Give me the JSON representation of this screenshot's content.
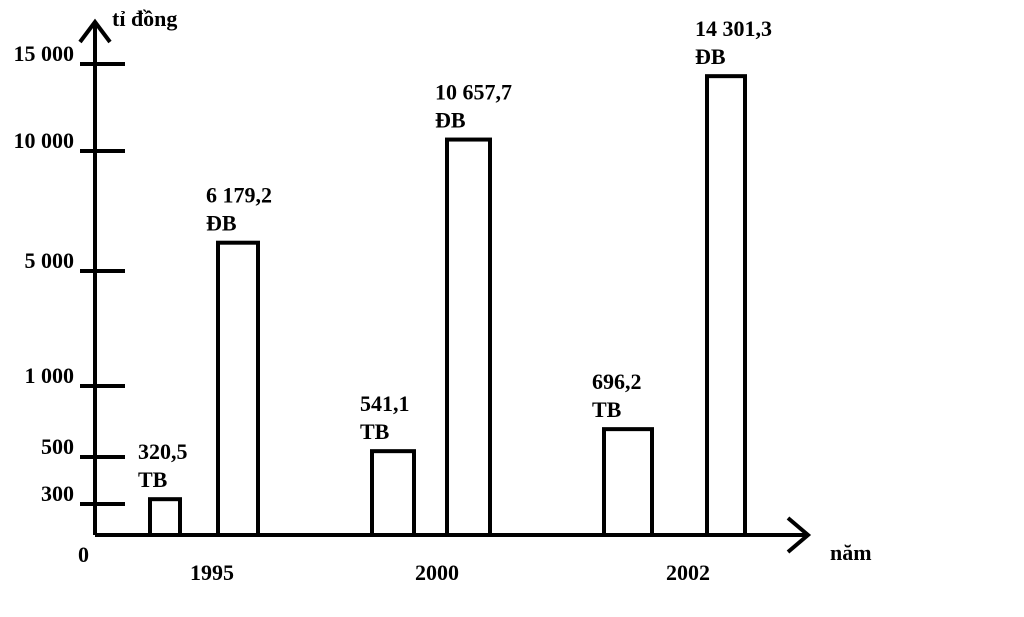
{
  "chart_data": {
    "type": "bar",
    "y_label": "tỉ đồng",
    "x_label": "năm",
    "categories": [
      "1995",
      "2000",
      "2002"
    ],
    "series": [
      {
        "name": "TB",
        "color": "#ffffff",
        "values": [
          320.5,
          541.1,
          696.2
        ],
        "value_labels": [
          "320,5",
          "541,1",
          "696,2"
        ]
      },
      {
        "name": "ĐB",
        "color": "#ffffff",
        "values": [
          6179.2,
          10657.7,
          14301.3
        ],
        "value_labels": [
          "6 179,2",
          "10 657,7",
          "14 301,3"
        ]
      }
    ],
    "ylim": [
      0,
      15000
    ],
    "yticks": [
      0,
      300,
      500,
      {
        "value": 1000,
        "label": "1 000"
      },
      {
        "value": 5000,
        "label": "5 000"
      },
      {
        "value": 10000,
        "label": "10 000"
      },
      {
        "value": 15000,
        "label": "15 000"
      }
    ]
  }
}
